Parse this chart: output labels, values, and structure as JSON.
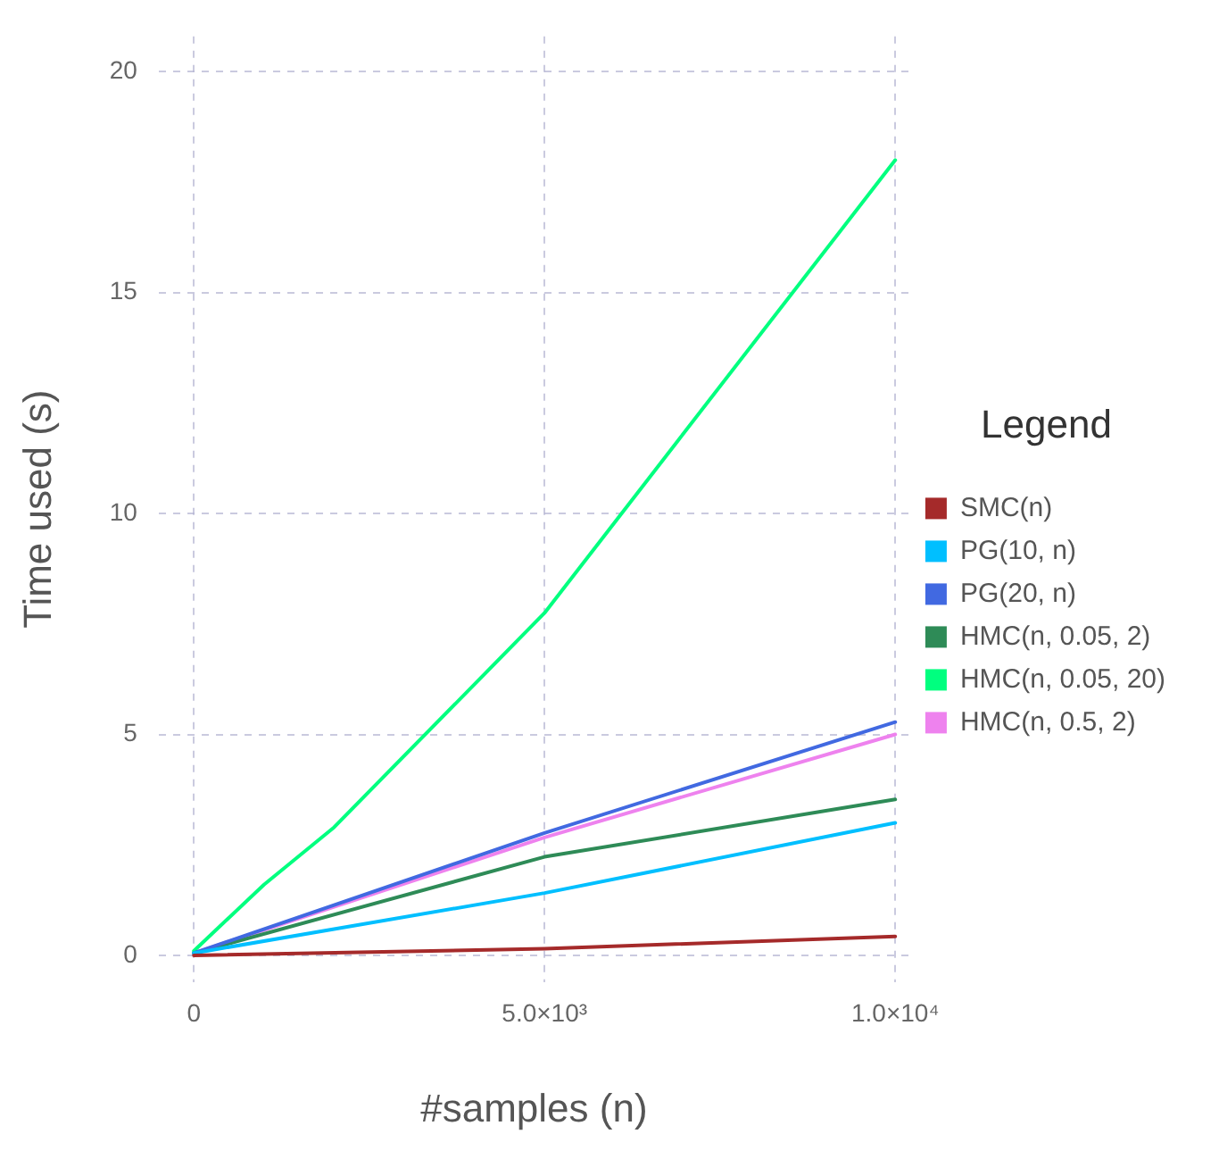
{
  "chart_data": {
    "type": "line",
    "xlabel": "#samples (n)",
    "ylabel": "Time used (s)",
    "legend_title": "Legend",
    "legend": "right",
    "grid": true,
    "marker": "none",
    "line_style": "solid",
    "x": [
      0,
      5000,
      10000
    ],
    "xlim": [
      -500,
      10200
    ],
    "xticks": [
      0,
      {
        "value": 5000,
        "label": "5.0×10³"
      },
      {
        "value": 10000,
        "label": "1.0×10⁴"
      }
    ],
    "ylim": [
      -0.6,
      20.8
    ],
    "yticks": [
      0,
      5,
      10,
      15,
      20
    ],
    "series": [
      {
        "name": "SMC(n)",
        "color": "#a52a2a",
        "values": [
          0,
          0.15,
          0.43
        ]
      },
      {
        "name": "PG(10, n)",
        "color": "#00bfff",
        "values": [
          0.05,
          1.41,
          3.0
        ]
      },
      {
        "name": "PG(20, n)",
        "color": "#4169e1",
        "values": [
          0.05,
          2.77,
          5.28
        ]
      },
      {
        "name": "HMC(n, 0.05, 2)",
        "color": "#2e8b57",
        "values": [
          0.05,
          2.23,
          3.53
        ]
      },
      {
        "name": "HMC(n, 0.05, 20)",
        "color": "#00ff7f",
        "x": [
          0,
          1000,
          2000,
          5000,
          10000
        ],
        "values": [
          0.1,
          1.6,
          2.9,
          7.75,
          18.0
        ]
      },
      {
        "name": "HMC(n, 0.5, 2)",
        "color": "#ee82ee",
        "values": [
          0.05,
          2.67,
          5.0
        ]
      }
    ]
  }
}
